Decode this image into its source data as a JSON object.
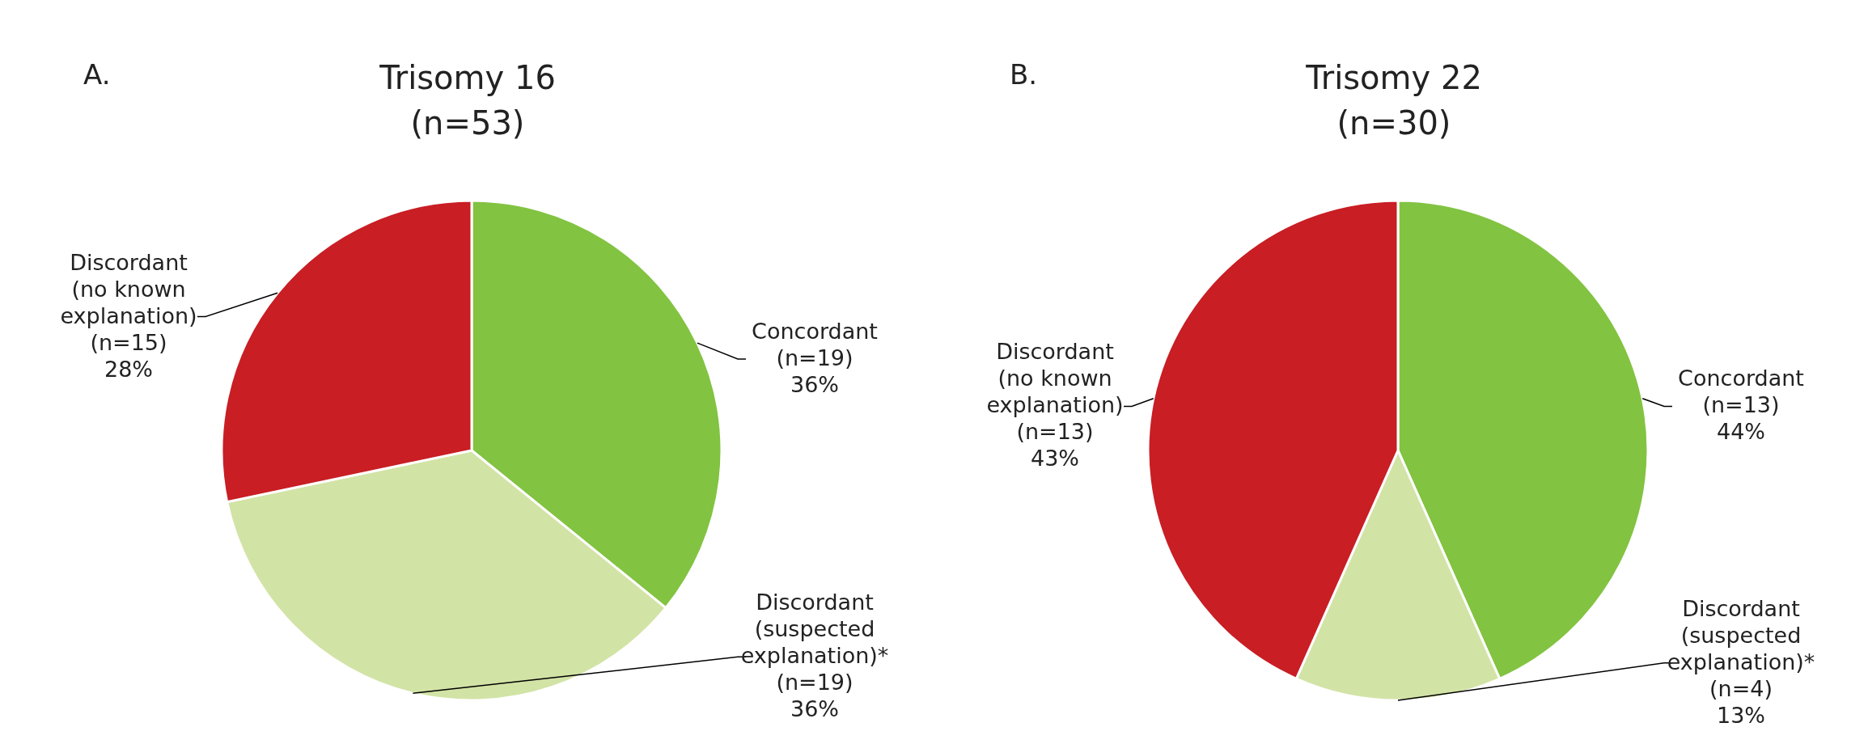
{
  "chart_data": [
    {
      "type": "pie",
      "title": "Trisomy 16",
      "subtitle": "(n=53)",
      "annotations": [
        "A."
      ],
      "categories": [
        "Concordant",
        "Discordant (suspected explanation)*",
        "Discordant (no known explanation)"
      ],
      "values": [
        19,
        19,
        15
      ],
      "value_labels": [
        "(n=19) 36%",
        "(n=19) 36%",
        "(n=15) 28%"
      ],
      "colors": [
        "#82c341",
        "#d2e3a6",
        "#c81e24"
      ],
      "legend": false
    },
    {
      "type": "pie",
      "title": "Trisomy 22",
      "subtitle": "(n=30)",
      "annotations": [
        "B."
      ],
      "categories": [
        "Concordant",
        "Discordant (suspected explanation)*",
        "Discordant (no known explanation)"
      ],
      "values": [
        13,
        4,
        13
      ],
      "value_labels": [
        "(n=13) 44%",
        "(n=4) 13%",
        "(n=13) 43%"
      ],
      "colors": [
        "#82c341",
        "#d2e3a6",
        "#c81e24"
      ],
      "legend": false
    }
  ]
}
